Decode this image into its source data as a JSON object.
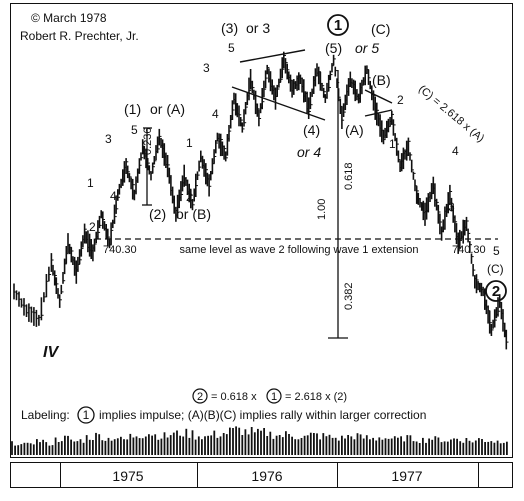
{
  "chart_data": {
    "type": "bar",
    "subtype": "ohlc-price-with-volume",
    "copyright": "© March 1978",
    "author": "Robert R. Prechter, Jr.",
    "x_range": [
      "1974-10",
      "1977-12"
    ],
    "years": [
      "1975",
      "1976",
      "1977"
    ],
    "reference_level": {
      "value": 740.3,
      "left_label": "740.30",
      "right_label": "740.30",
      "note": "same level as wave 2 following wave 1 extension"
    },
    "wave_labels": {
      "iv": "IV",
      "w1": "1",
      "w2": "2",
      "w3": "3",
      "w4": "4",
      "w5": "5",
      "p1_lbl": "(1)",
      "p1_alt": "or (A)",
      "p2_lbl": "(2)",
      "p2_alt": "or (B)",
      "p3_lbl": "(3)",
      "p3_alt": "or 3",
      "p3_n3": "3",
      "p3_n4": "4",
      "p3_n5": "5",
      "p4_lbl": "(4)",
      "p4_alt": "or  4",
      "top_circle": "1",
      "top_5": "(5)",
      "top_or": "or 5",
      "top_c": "(C)",
      "b_lbl": "(B)",
      "a_lbl": "(A)",
      "d_2": "2",
      "d_1": "1",
      "d_4": "4",
      "d_3": "3",
      "d_5": "5",
      "d_c": "(C)",
      "end_circle": "2",
      "sub_1": "1",
      "sub_2": "2"
    },
    "ratios": {
      "r_0236": "0.236",
      "r_0618": "0.618",
      "r_100": "1.00",
      "r_0382": "0.382",
      "ext": "(C) = 2.618 x (A)"
    },
    "formula": {
      "c1": "2",
      "t1": "= 0.618 x",
      "c2": "1",
      "t2": "= 2.618 x (2)"
    },
    "labeling": {
      "prefix": "Labeling:",
      "circle": "1",
      "text": "implies impulse; (A)(B)(C) implies rally within larger correction"
    },
    "price_path": [
      [
        0,
        42
      ],
      [
        3,
        40
      ],
      [
        6,
        39
      ],
      [
        9,
        45
      ],
      [
        11,
        41
      ],
      [
        13,
        47
      ],
      [
        15,
        44
      ],
      [
        17,
        48
      ],
      [
        19,
        46
      ],
      [
        21,
        50
      ],
      [
        23,
        47
      ],
      [
        25,
        52
      ],
      [
        27,
        55
      ],
      [
        29,
        52
      ],
      [
        31,
        57
      ],
      [
        33,
        54
      ],
      [
        35,
        58
      ],
      [
        37,
        55
      ],
      [
        39,
        50
      ],
      [
        41,
        54
      ],
      [
        43,
        51
      ],
      [
        45,
        56
      ],
      [
        47,
        53
      ],
      [
        49,
        58
      ],
      [
        51,
        56
      ],
      [
        53,
        62
      ],
      [
        55,
        59
      ],
      [
        57,
        64
      ],
      [
        59,
        60
      ],
      [
        61,
        65
      ],
      [
        63,
        62
      ],
      [
        65,
        66
      ],
      [
        67,
        63
      ],
      [
        69,
        64
      ],
      [
        71,
        61
      ],
      [
        73,
        65
      ],
      [
        75,
        62
      ],
      [
        77,
        66
      ],
      [
        79,
        60
      ],
      [
        81,
        64
      ],
      [
        83,
        62
      ],
      [
        85,
        65
      ],
      [
        87,
        61
      ],
      [
        89,
        58
      ],
      [
        91,
        60
      ],
      [
        93,
        55
      ],
      [
        95,
        57
      ],
      [
        97,
        52
      ],
      [
        99,
        50
      ],
      [
        101,
        53
      ],
      [
        103,
        48
      ],
      [
        105,
        52
      ],
      [
        107,
        47
      ],
      [
        109,
        49
      ],
      [
        111,
        43
      ],
      [
        113,
        42
      ],
      [
        115,
        38
      ],
      [
        117,
        41
      ],
      [
        119,
        36
      ]
    ],
    "volume_profile": [
      30,
      25,
      35,
      40,
      28,
      45,
      50,
      38,
      42,
      55,
      60,
      48,
      52,
      45,
      58,
      65,
      70,
      62,
      58,
      66,
      72,
      68,
      60,
      55,
      64,
      70,
      78,
      82,
      75,
      68,
      72,
      66,
      60,
      64,
      58,
      55,
      62,
      58,
      54,
      50,
      56,
      60,
      52,
      48,
      55,
      50,
      46,
      52,
      48,
      44,
      50,
      46,
      42,
      48,
      44,
      40,
      46,
      42,
      38,
      44
    ],
    "volume_units": "relative",
    "grid": false,
    "legend": "none"
  }
}
